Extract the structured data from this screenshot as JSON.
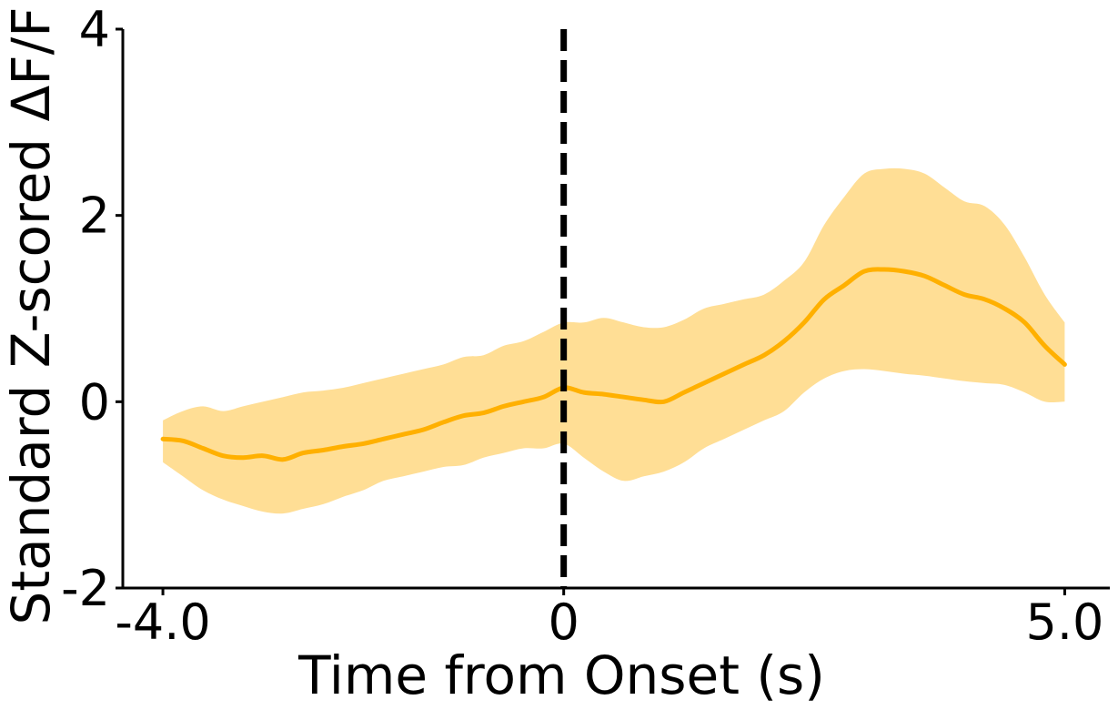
{
  "chart_data": {
    "type": "line",
    "title": "",
    "xlabel": "Time from Onset (s)",
    "ylabel": "Standard Z-scored ΔF/F",
    "xlim": [
      -4.4,
      5.45
    ],
    "ylim": [
      -2,
      4
    ],
    "x_ticks": [
      -4,
      0,
      5
    ],
    "x_tick_labels": [
      "-4.0",
      "0",
      "5.0"
    ],
    "y_ticks": [
      -2,
      0,
      2,
      4
    ],
    "y_tick_labels": [
      "-2",
      "0",
      "2",
      "4"
    ],
    "grid": false,
    "legend": "none",
    "colors": {
      "line": "#FFB000",
      "band": "#FFDE95",
      "onset": "#000000",
      "axis": "#000000"
    },
    "onset_x": 0,
    "series": [
      {
        "x": [
          -4.0,
          -3.8,
          -3.6,
          -3.4,
          -3.2,
          -3.0,
          -2.8,
          -2.6,
          -2.4,
          -2.2,
          -2.0,
          -1.8,
          -1.6,
          -1.4,
          -1.2,
          -1.0,
          -0.8,
          -0.6,
          -0.4,
          -0.2,
          0.0,
          0.2,
          0.4,
          0.6,
          0.8,
          1.0,
          1.2,
          1.4,
          1.6,
          1.8,
          2.0,
          2.2,
          2.4,
          2.6,
          2.8,
          3.0,
          3.2,
          3.4,
          3.6,
          3.8,
          4.0,
          4.2,
          4.4,
          4.6,
          4.8,
          5.0
        ],
        "values": [
          -0.4,
          -0.42,
          -0.5,
          -0.58,
          -0.6,
          -0.58,
          -0.62,
          -0.55,
          -0.52,
          -0.48,
          -0.45,
          -0.4,
          -0.35,
          -0.3,
          -0.22,
          -0.15,
          -0.12,
          -0.05,
          0.0,
          0.05,
          0.15,
          0.1,
          0.08,
          0.05,
          0.02,
          0.0,
          0.1,
          0.2,
          0.3,
          0.4,
          0.5,
          0.65,
          0.85,
          1.1,
          1.25,
          1.4,
          1.42,
          1.4,
          1.35,
          1.25,
          1.15,
          1.1,
          1.0,
          0.85,
          0.6,
          0.4
        ],
        "lower": [
          -0.65,
          -0.8,
          -0.95,
          -1.05,
          -1.12,
          -1.18,
          -1.2,
          -1.15,
          -1.1,
          -1.02,
          -0.95,
          -0.85,
          -0.8,
          -0.75,
          -0.7,
          -0.68,
          -0.6,
          -0.55,
          -0.5,
          -0.5,
          -0.45,
          -0.6,
          -0.75,
          -0.85,
          -0.8,
          -0.75,
          -0.65,
          -0.5,
          -0.4,
          -0.3,
          -0.2,
          -0.1,
          0.1,
          0.25,
          0.33,
          0.35,
          0.33,
          0.3,
          0.28,
          0.25,
          0.22,
          0.2,
          0.18,
          0.1,
          0.0,
          0.0
        ],
        "upper": [
          -0.2,
          -0.1,
          -0.05,
          -0.1,
          -0.05,
          0.0,
          0.05,
          0.1,
          0.12,
          0.15,
          0.2,
          0.25,
          0.3,
          0.35,
          0.4,
          0.48,
          0.5,
          0.6,
          0.65,
          0.75,
          0.85,
          0.85,
          0.9,
          0.85,
          0.8,
          0.8,
          0.88,
          1.0,
          1.05,
          1.1,
          1.15,
          1.3,
          1.5,
          1.9,
          2.2,
          2.45,
          2.5,
          2.5,
          2.45,
          2.3,
          2.15,
          2.1,
          1.9,
          1.55,
          1.15,
          0.85
        ]
      }
    ]
  }
}
